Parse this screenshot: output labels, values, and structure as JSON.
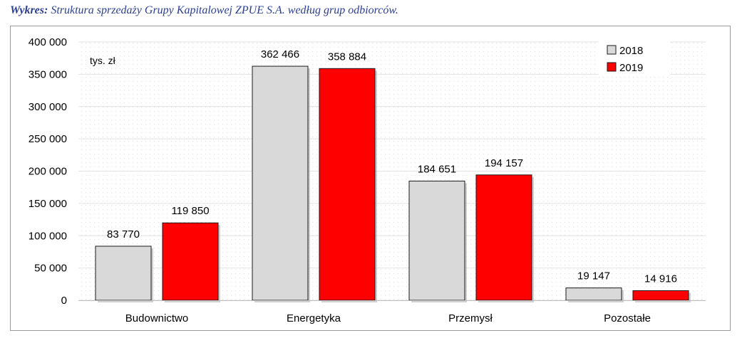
{
  "caption": {
    "lead": "Wykres:",
    "text": "Struktura sprzedaży Grupy Kapitalowej ZPUE S.A. według grup odbiorców."
  },
  "chart_data": {
    "type": "bar",
    "unit": "tys. zł",
    "categories": [
      "Budownictwo",
      "Energetyka",
      "Przemysł",
      "Pozostałe"
    ],
    "series": [
      {
        "name": "2018",
        "color": "#d9d9d9",
        "values": [
          83770,
          362466,
          184651,
          19147
        ],
        "labels": [
          "83 770",
          "362 466",
          "184 651",
          "19 147"
        ]
      },
      {
        "name": "2019",
        "color": "#ff0000",
        "values": [
          119850,
          358884,
          194157,
          14916
        ],
        "labels": [
          "119 850",
          "358 884",
          "194 157",
          "14 916"
        ]
      }
    ],
    "ylim": [
      0,
      400000
    ],
    "yticks": [
      0,
      50000,
      100000,
      150000,
      200000,
      250000,
      300000,
      350000,
      400000
    ],
    "ytick_labels": [
      "0",
      "50 000",
      "100 000",
      "150 000",
      "200 000",
      "250 000",
      "300 000",
      "350 000",
      "400 000"
    ],
    "grid": true,
    "legend_position": "top-right"
  }
}
